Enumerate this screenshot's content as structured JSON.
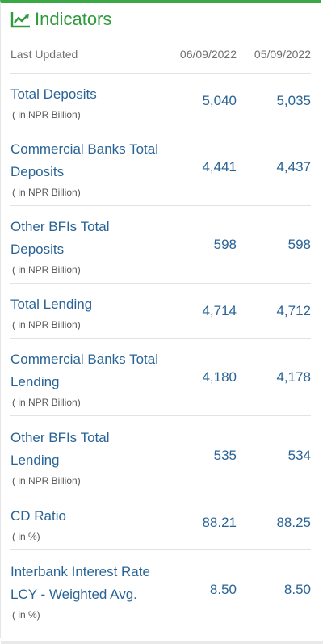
{
  "header": {
    "title": "Indicators",
    "icon": "line-chart-icon",
    "accent": "#2e9b3c"
  },
  "columns": {
    "label": "Last Updated",
    "date1": "06/09/2022",
    "date2": "05/09/2022"
  },
  "rows": [
    {
      "name_lines": [
        "Total Deposits"
      ],
      "unit": "( in NPR Billion)",
      "v1": "5,040",
      "v2": "5,035"
    },
    {
      "name_lines": [
        "Commercial Banks Total",
        "Deposits"
      ],
      "unit": "( in NPR Billion)",
      "v1": "4,441",
      "v2": "4,437"
    },
    {
      "name_lines": [
        "Other BFIs Total",
        "Deposits"
      ],
      "unit": "( in NPR Billion)",
      "v1": "598",
      "v2": "598"
    },
    {
      "name_lines": [
        "Total Lending"
      ],
      "unit": "( in NPR Billion)",
      "v1": "4,714",
      "v2": "4,712"
    },
    {
      "name_lines": [
        "Commercial Banks Total",
        "Lending"
      ],
      "unit": "( in NPR Billion)",
      "v1": "4,180",
      "v2": "4,178"
    },
    {
      "name_lines": [
        "Other BFIs Total",
        "Lending"
      ],
      "unit": "( in NPR Billion)",
      "v1": "535",
      "v2": "534"
    },
    {
      "name_lines": [
        "CD Ratio"
      ],
      "unit": "( in %)",
      "v1": "88.21",
      "v2": "88.25"
    },
    {
      "name_lines": [
        "Interbank Interest Rate",
        "LCY - Weighted Avg."
      ],
      "unit": "( in %)",
      "v1": "8.50",
      "v2": "8.50"
    }
  ]
}
